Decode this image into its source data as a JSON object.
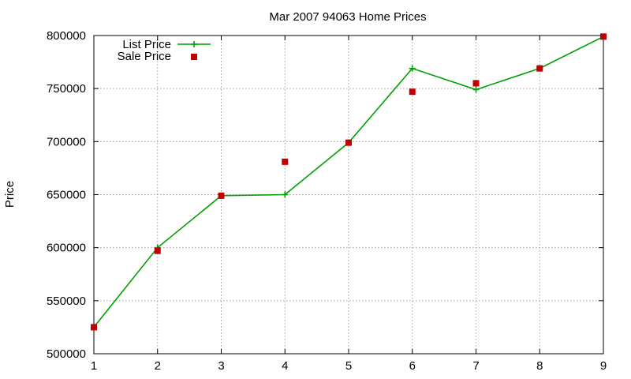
{
  "chart_data": {
    "type": "line",
    "title": "Mar 2007 94063 Home Prices",
    "xlabel": "",
    "ylabel": "Price",
    "x": [
      1,
      2,
      3,
      4,
      5,
      6,
      7,
      8,
      9
    ],
    "xlim": [
      1,
      9
    ],
    "ylim": [
      500000,
      800000
    ],
    "x_ticks": [
      1,
      2,
      3,
      4,
      5,
      6,
      7,
      8,
      9
    ],
    "y_ticks": [
      500000,
      550000,
      600000,
      650000,
      700000,
      750000,
      800000
    ],
    "grid": true,
    "legend_position": "top-left",
    "series": [
      {
        "name": "List Price",
        "style": "line-with-plus",
        "color": "#00a000",
        "values": [
          525000,
          600000,
          649000,
          650000,
          699000,
          769000,
          749000,
          769000,
          799000
        ]
      },
      {
        "name": "Sale Price",
        "style": "square-points",
        "color": "#c00000",
        "values": [
          525000,
          597000,
          649000,
          681000,
          699000,
          747000,
          755000,
          769000,
          799000
        ]
      }
    ]
  }
}
